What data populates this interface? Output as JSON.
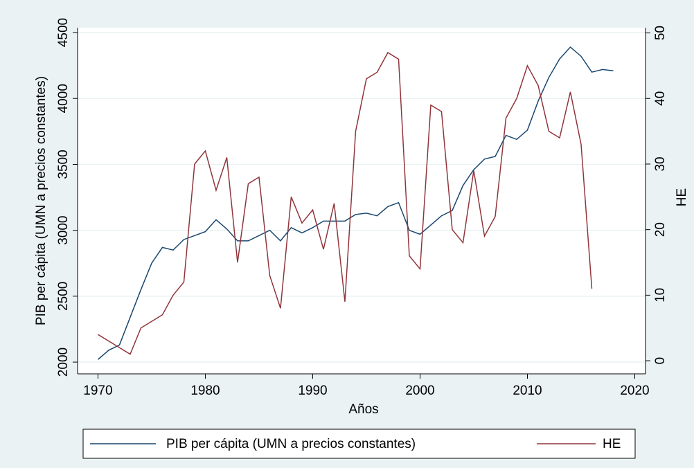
{
  "chart_data": {
    "type": "line",
    "x_label": "Años",
    "y_label": "PIB per cápita (UMN a precios constantes)",
    "y2_label": "HE",
    "x": [
      1970,
      1971,
      1972,
      1973,
      1974,
      1975,
      1976,
      1977,
      1978,
      1979,
      1980,
      1981,
      1982,
      1983,
      1984,
      1985,
      1986,
      1987,
      1988,
      1989,
      1990,
      1991,
      1992,
      1993,
      1994,
      1995,
      1996,
      1997,
      1998,
      1999,
      2000,
      2001,
      2002,
      2003,
      2004,
      2005,
      2006,
      2007,
      2008,
      2009,
      2010,
      2011,
      2012,
      2013,
      2014,
      2015,
      2016,
      2017,
      2018
    ],
    "series": [
      {
        "name": "PIB per cápita (UMN a precios constantes)",
        "color": "#1a476f",
        "values": [
          2020,
          2090,
          2130,
          2340,
          2550,
          2750,
          2870,
          2850,
          2930,
          2960,
          2990,
          3080,
          3010,
          2920,
          2920,
          2960,
          3000,
          2920,
          3020,
          2980,
          3020,
          3070,
          3070,
          3070,
          3120,
          3130,
          3110,
          3180,
          3210,
          3000,
          2970,
          3040,
          3110,
          3150,
          3340,
          3460,
          3540,
          3560,
          3720,
          3690,
          3760,
          3980,
          4160,
          4300,
          4390,
          4320,
          4200,
          4220,
          4210
        ]
      },
      {
        "name": "HE",
        "color": "#90353b",
        "axis": "y2",
        "values": [
          4,
          3,
          2,
          1,
          5,
          6,
          7,
          10,
          12,
          30,
          32,
          26,
          31,
          15,
          27,
          28,
          13,
          8,
          25,
          21,
          23,
          17,
          24,
          9,
          35,
          43,
          44,
          47,
          46,
          16,
          14,
          39,
          38,
          20,
          18,
          29,
          19,
          22,
          37,
          40,
          45,
          42,
          35,
          34,
          41,
          33,
          11,
          null,
          null
        ]
      }
    ],
    "xlim": [
      1968.1,
      2021
    ],
    "xticks": [
      1970,
      1980,
      1990,
      2000,
      2010,
      2020
    ],
    "ylim": [
      1911,
      4537
    ],
    "yticks": [
      2000,
      2500,
      3000,
      3500,
      4000,
      4500
    ],
    "y2lim": [
      -2,
      50.8
    ],
    "y2ticks": [
      0,
      10,
      20,
      30,
      40,
      50
    ],
    "grid": true,
    "legend": "bottom"
  }
}
